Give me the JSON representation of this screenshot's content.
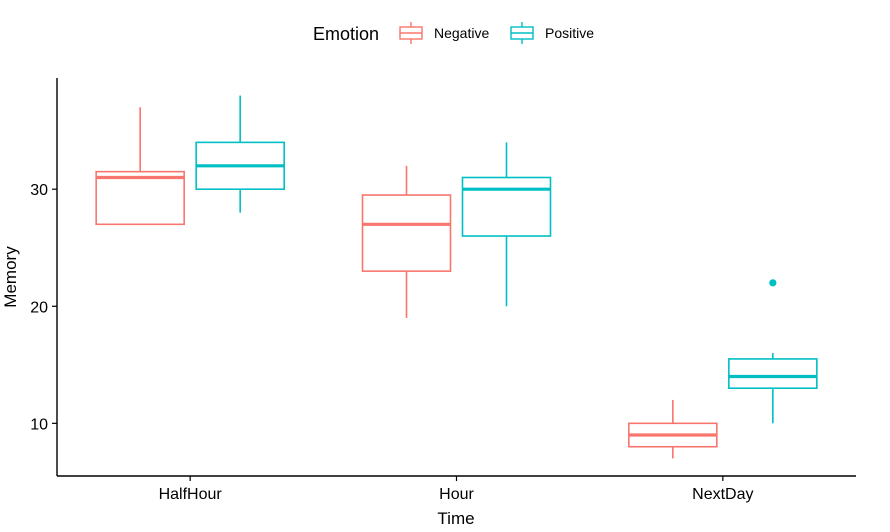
{
  "chart_data": {
    "type": "boxplot",
    "title": "",
    "xlabel": "Time",
    "ylabel": "Memory",
    "ylim": [
      5.5,
      39.5
    ],
    "yticks": [
      10,
      20,
      30
    ],
    "categories": [
      "HalfHour",
      "Hour",
      "NextDay"
    ],
    "legend": {
      "title": "Emotion",
      "position": "top",
      "entries": [
        "Negative",
        "Positive"
      ]
    },
    "series": [
      {
        "name": "Negative",
        "color": "#F8766D",
        "boxes": [
          {
            "category": "HalfHour",
            "min": 27,
            "q1": 27,
            "median": 31,
            "q3": 31.5,
            "max": 37,
            "outliers": []
          },
          {
            "category": "Hour",
            "min": 19,
            "q1": 23,
            "median": 27,
            "q3": 29.5,
            "max": 32,
            "outliers": []
          },
          {
            "category": "NextDay",
            "min": 7,
            "q1": 8,
            "median": 9,
            "q3": 10,
            "max": 12,
            "outliers": []
          }
        ]
      },
      {
        "name": "Positive",
        "color": "#00BFC4",
        "boxes": [
          {
            "category": "HalfHour",
            "min": 28,
            "q1": 30,
            "median": 32,
            "q3": 34,
            "max": 38,
            "outliers": []
          },
          {
            "category": "Hour",
            "min": 20,
            "q1": 26,
            "median": 30,
            "q3": 31,
            "max": 34,
            "outliers": []
          },
          {
            "category": "NextDay",
            "min": 10,
            "q1": 13,
            "median": 14,
            "q3": 15.5,
            "max": 16,
            "outliers": [
              22
            ]
          }
        ]
      }
    ]
  }
}
